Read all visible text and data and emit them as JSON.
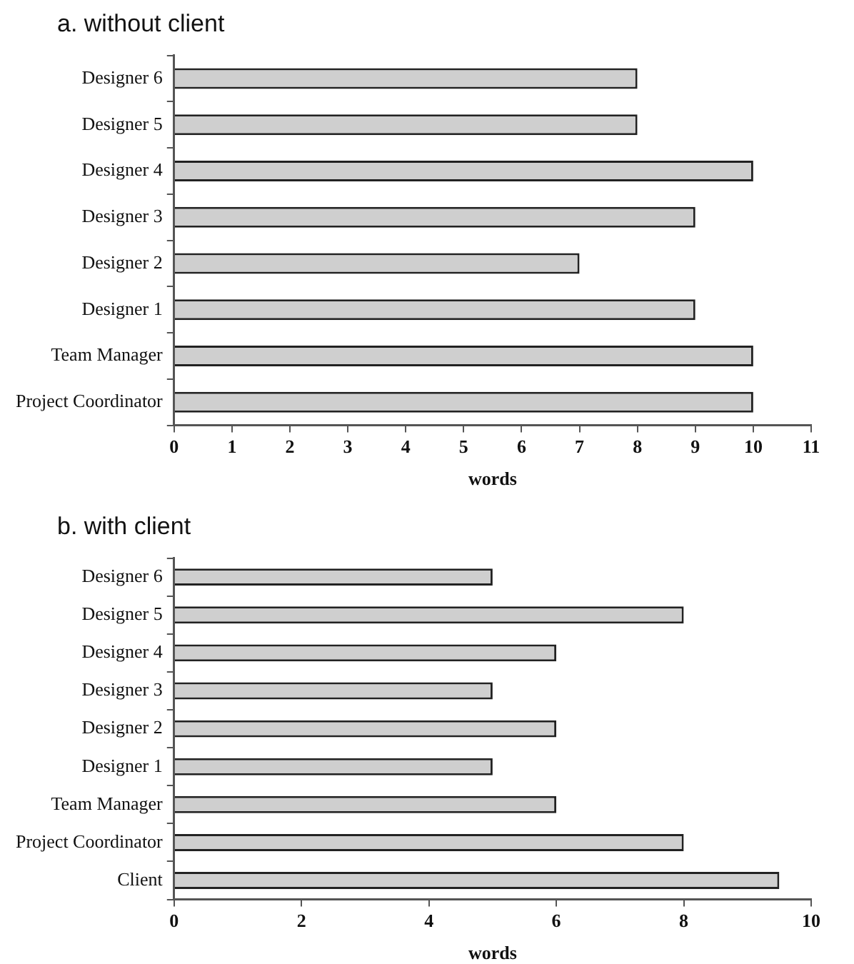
{
  "chart_data": [
    {
      "type": "bar",
      "orientation": "horizontal",
      "title": "a. without client",
      "xlabel": "words",
      "categories": [
        "Designer 6",
        "Designer 5",
        "Designer 4",
        "Designer 3",
        "Designer 2",
        "Designer 1",
        "Team Manager",
        "Project Coordinator"
      ],
      "values": [
        8,
        8,
        10,
        9,
        7,
        9,
        10,
        10
      ],
      "color": "#cfcfcf",
      "xlim": [
        0,
        11
      ],
      "xticks": [
        0,
        1,
        2,
        3,
        4,
        5,
        6,
        7,
        8,
        9,
        10,
        11
      ],
      "grid": false,
      "legend": false
    },
    {
      "type": "bar",
      "orientation": "horizontal",
      "title": "b. with client",
      "xlabel": "words",
      "categories": [
        "Designer 6",
        "Designer 5",
        "Designer 4",
        "Designer 3",
        "Designer 2",
        "Designer 1",
        "Team Manager",
        "Project Coordinator",
        "Client"
      ],
      "values": [
        5,
        8,
        6,
        5,
        6,
        5,
        6,
        8,
        9.5
      ],
      "color": "#cfcfcf",
      "xlim": [
        0,
        10
      ],
      "xticks": [
        0,
        2,
        4,
        6,
        8,
        10
      ],
      "grid": false,
      "legend": false
    }
  ]
}
